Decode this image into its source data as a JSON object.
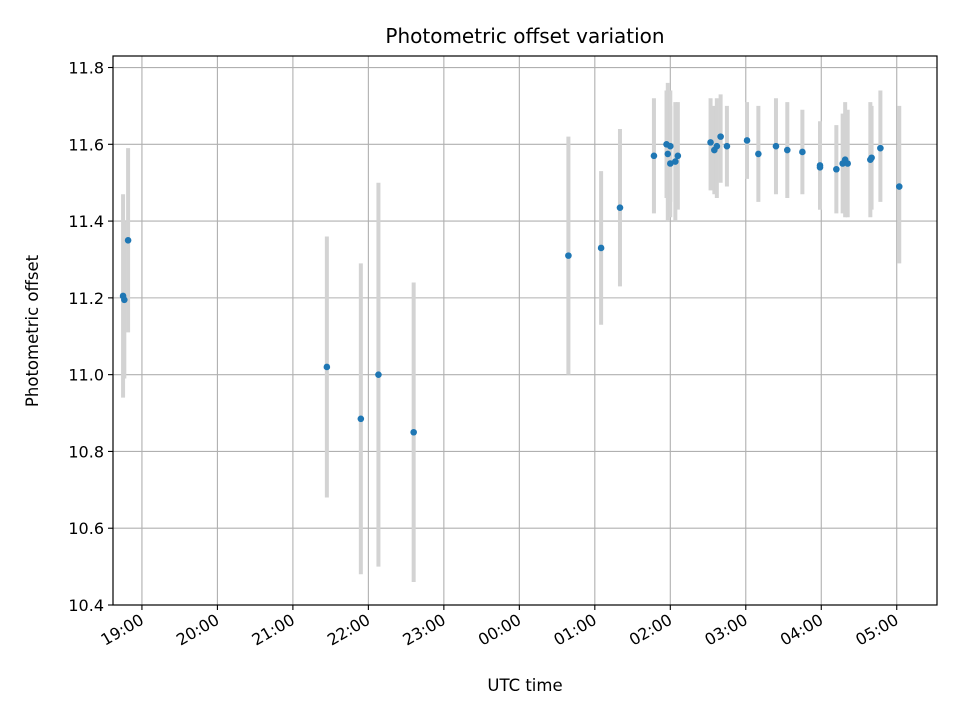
{
  "chart_data": {
    "type": "scatter",
    "title": "Photometric offset variation",
    "xlabel": "UTC time",
    "ylabel": "Photometric offset",
    "x_unit": "UTC",
    "xlim": [
      "18:37",
      "05:32"
    ],
    "ylim": [
      10.4,
      11.83
    ],
    "x_ticks": [
      "19:00",
      "20:00",
      "21:00",
      "22:00",
      "23:00",
      "00:00",
      "01:00",
      "02:00",
      "03:00",
      "04:00",
      "05:00"
    ],
    "y_ticks": [
      10.4,
      10.6,
      10.8,
      11.0,
      11.2,
      11.4,
      11.6,
      11.8
    ],
    "y_tick_labels": [
      "10.4",
      "10.6",
      "10.8",
      "11.0",
      "11.2",
      "11.4",
      "11.6",
      "11.8"
    ],
    "grid": true,
    "legend": "none",
    "colors": {
      "points": "#1f77b4",
      "errorbars": "#d3d3d3",
      "grid": "#b0b0b0"
    },
    "points": [
      {
        "time": "18:45",
        "y": 11.205,
        "ylo": 10.94,
        "yhi": 11.47
      },
      {
        "time": "18:46",
        "y": 11.195,
        "ylo": 10.99,
        "yhi": 11.4
      },
      {
        "time": "18:49",
        "y": 11.35,
        "ylo": 11.11,
        "yhi": 11.59
      },
      {
        "time": "21:27",
        "y": 11.02,
        "ylo": 10.68,
        "yhi": 11.36
      },
      {
        "time": "21:54",
        "y": 10.885,
        "ylo": 10.48,
        "yhi": 11.29
      },
      {
        "time": "22:08",
        "y": 11.0,
        "ylo": 10.5,
        "yhi": 11.5
      },
      {
        "time": "22:36",
        "y": 10.85,
        "ylo": 10.46,
        "yhi": 11.24
      },
      {
        "time": "00:39",
        "y": 11.31,
        "ylo": 11.0,
        "yhi": 11.62
      },
      {
        "time": "01:05",
        "y": 11.33,
        "ylo": 11.13,
        "yhi": 11.53
      },
      {
        "time": "01:20",
        "y": 11.435,
        "ylo": 11.23,
        "yhi": 11.64
      },
      {
        "time": "01:47",
        "y": 11.57,
        "ylo": 11.42,
        "yhi": 11.72
      },
      {
        "time": "01:57",
        "y": 11.6,
        "ylo": 11.46,
        "yhi": 11.74
      },
      {
        "time": "01:58",
        "y": 11.575,
        "ylo": 11.4,
        "yhi": 11.76
      },
      {
        "time": "02:00",
        "y": 11.595,
        "ylo": 11.45,
        "yhi": 11.74
      },
      {
        "time": "02:00",
        "y": 11.55,
        "ylo": 11.41,
        "yhi": 11.7
      },
      {
        "time": "02:04",
        "y": 11.555,
        "ylo": 11.4,
        "yhi": 11.71
      },
      {
        "time": "02:06",
        "y": 11.57,
        "ylo": 11.43,
        "yhi": 11.71
      },
      {
        "time": "02:32",
        "y": 11.605,
        "ylo": 11.48,
        "yhi": 11.72
      },
      {
        "time": "02:35",
        "y": 11.585,
        "ylo": 11.47,
        "yhi": 11.7
      },
      {
        "time": "02:37",
        "y": 11.595,
        "ylo": 11.46,
        "yhi": 11.72
      },
      {
        "time": "02:40",
        "y": 11.62,
        "ylo": 11.5,
        "yhi": 11.73
      },
      {
        "time": "02:45",
        "y": 11.595,
        "ylo": 11.49,
        "yhi": 11.7
      },
      {
        "time": "03:01",
        "y": 11.61,
        "ylo": 11.51,
        "yhi": 11.71
      },
      {
        "time": "03:10",
        "y": 11.575,
        "ylo": 11.45,
        "yhi": 11.7
      },
      {
        "time": "03:24",
        "y": 11.595,
        "ylo": 11.47,
        "yhi": 11.72
      },
      {
        "time": "03:33",
        "y": 11.585,
        "ylo": 11.46,
        "yhi": 11.71
      },
      {
        "time": "03:45",
        "y": 11.58,
        "ylo": 11.47,
        "yhi": 11.69
      },
      {
        "time": "03:59",
        "y": 11.545,
        "ylo": 11.43,
        "yhi": 11.66
      },
      {
        "time": "03:59",
        "y": 11.54,
        "ylo": 11.43,
        "yhi": 11.65
      },
      {
        "time": "04:12",
        "y": 11.535,
        "ylo": 11.42,
        "yhi": 11.65
      },
      {
        "time": "04:17",
        "y": 11.55,
        "ylo": 11.42,
        "yhi": 11.68
      },
      {
        "time": "04:19",
        "y": 11.56,
        "ylo": 11.41,
        "yhi": 11.71
      },
      {
        "time": "04:21",
        "y": 11.55,
        "ylo": 11.41,
        "yhi": 11.69
      },
      {
        "time": "04:39",
        "y": 11.56,
        "ylo": 11.41,
        "yhi": 11.71
      },
      {
        "time": "04:40",
        "y": 11.565,
        "ylo": 11.43,
        "yhi": 11.7
      },
      {
        "time": "04:47",
        "y": 11.59,
        "ylo": 11.45,
        "yhi": 11.74
      },
      {
        "time": "05:02",
        "y": 11.49,
        "ylo": 11.29,
        "yhi": 11.7
      }
    ]
  }
}
